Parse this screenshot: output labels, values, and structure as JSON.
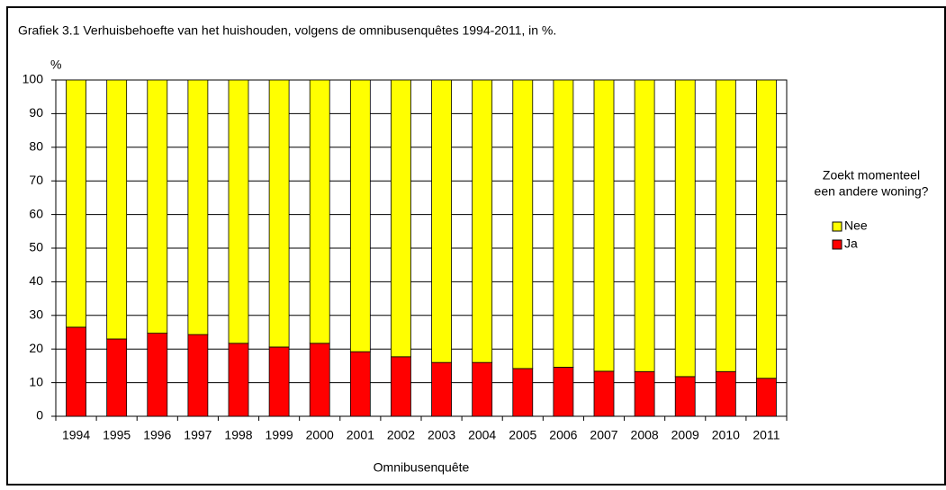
{
  "chart_data": {
    "type": "bar",
    "stacked": true,
    "title": "Grafiek 3.1 Verhuisbehoefte van het huishouden, volgens de omnibusenquêtes 1994-2011, in %.",
    "y_unit": "%",
    "x_label": "Omnibusenquête",
    "legend_title": [
      "Zoekt momenteel",
      "een andere woning?"
    ],
    "categories": [
      "1994",
      "1995",
      "1996",
      "1997",
      "1998",
      "1999",
      "2000",
      "2001",
      "2002",
      "2003",
      "2004",
      "2005",
      "2006",
      "2007",
      "2008",
      "2009",
      "2010",
      "2011"
    ],
    "series": [
      {
        "name": "Ja",
        "color": "#ff0000",
        "values": [
          26.5,
          23,
          24.7,
          24.3,
          21.7,
          20.6,
          21.7,
          19.2,
          17.7,
          16,
          16,
          14.2,
          14.6,
          13.4,
          13.3,
          11.8,
          13.3,
          11.3
        ]
      },
      {
        "name": "Nee",
        "color": "#ffff00",
        "values": [
          73.5,
          77,
          75.3,
          75.7,
          78.3,
          79.4,
          78.3,
          80.8,
          82.3,
          84,
          84,
          85.8,
          85.4,
          86.6,
          86.7,
          88.2,
          86.7,
          88.7
        ]
      }
    ],
    "ylim": [
      0,
      100
    ],
    "yticks": [
      0,
      10,
      20,
      30,
      40,
      50,
      60,
      70,
      80,
      90,
      100
    ],
    "grid": true
  }
}
